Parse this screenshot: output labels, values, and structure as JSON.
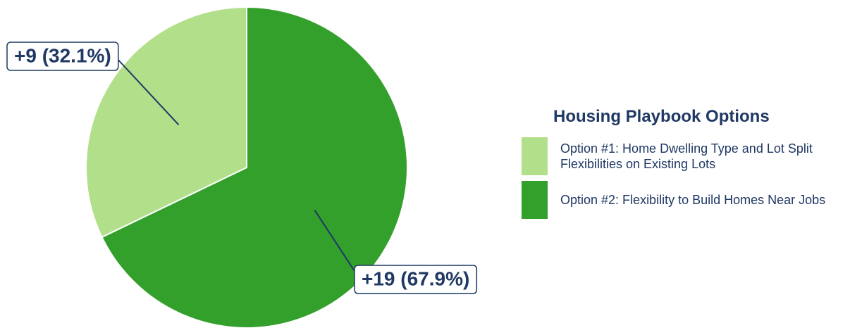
{
  "chart_data": {
    "type": "pie",
    "legend_title": "Housing Playbook Options",
    "categories": [
      "Option #1: Home Dwelling Type and Lot Split Flexibilities on Existing Lots",
      "Option #2: Flexibility to Build Homes Near Jobs"
    ],
    "values": [
      9,
      19
    ],
    "value_labels": [
      "+9 (32.1%)",
      "+19 (67.9%)"
    ],
    "colors": [
      "#b2df8a",
      "#33a02c"
    ],
    "legend": "right"
  }
}
